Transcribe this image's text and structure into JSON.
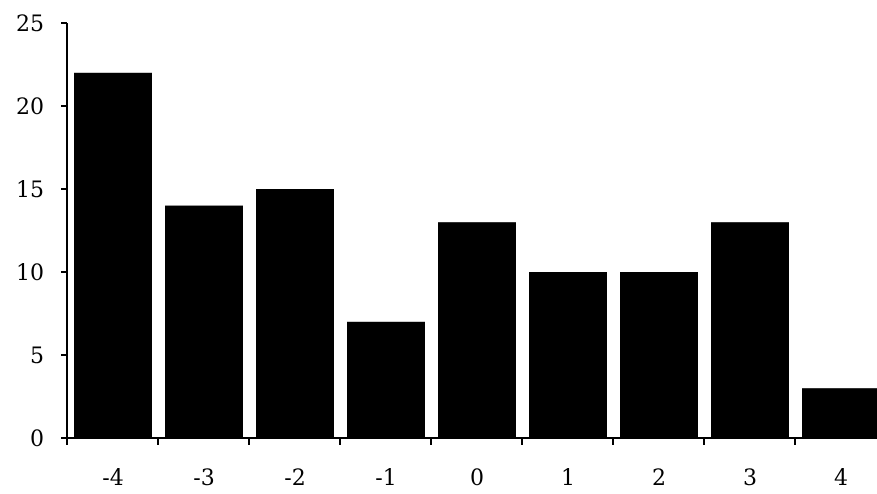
{
  "chart_data": {
    "type": "bar",
    "title": "",
    "xlabel": "",
    "ylabel": "",
    "categories": [
      "-4",
      "-3",
      "-2",
      "-1",
      "0",
      "1",
      "2",
      "3",
      "4"
    ],
    "values": [
      22,
      14,
      15,
      7,
      13,
      10,
      10,
      13,
      3
    ],
    "ylim": [
      0,
      25
    ],
    "yticks": [
      "0",
      "5",
      "10",
      "15",
      "20",
      "25"
    ],
    "grid": false,
    "legend": "none",
    "colors": {
      "bar": "#000000",
      "axis": "#000000",
      "background": "#ffffff"
    }
  }
}
